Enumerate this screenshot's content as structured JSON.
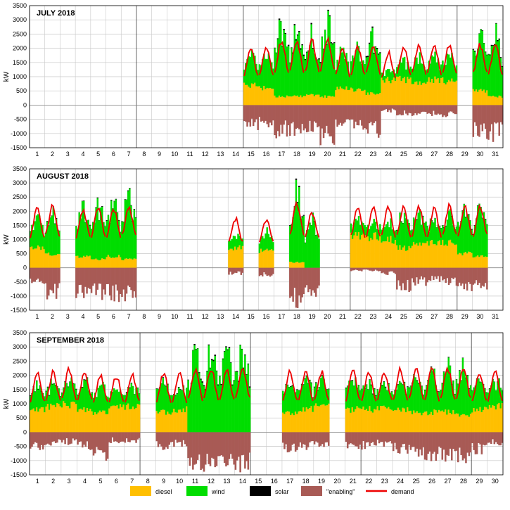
{
  "colors": {
    "diesel": "#ffbf00",
    "wind": "#00dd00",
    "solar": "#000000",
    "enabling": "#a85a55",
    "demand": "#ee0000",
    "grid_minor": "#c8c8c8",
    "grid_major": "#000000"
  },
  "legend": [
    {
      "key": "diesel",
      "label": "diesel",
      "kind": "box"
    },
    {
      "key": "wind",
      "label": "wind",
      "kind": "box"
    },
    {
      "key": "solar",
      "label": "solar",
      "kind": "box"
    },
    {
      "key": "enabling",
      "label": "\"enabling\"",
      "kind": "box"
    },
    {
      "key": "demand",
      "label": "demand",
      "kind": "line"
    }
  ],
  "chart_data": [
    {
      "type": "area",
      "title": "JULY 2018",
      "xlabel": "",
      "ylabel": "kW",
      "ylim": [
        -1500,
        3500
      ],
      "yticks": [
        -1500,
        -1000,
        -500,
        0,
        500,
        1000,
        1500,
        2000,
        2500,
        3000,
        3500
      ],
      "days": 31,
      "x_tick_labels": [
        "1",
        "2",
        "3",
        "4",
        "5",
        "6",
        "7",
        "8",
        "9",
        "10",
        "11",
        "12",
        "13",
        "14",
        "15",
        "16",
        "17",
        "18",
        "19",
        "20",
        "21",
        "22",
        "23",
        "24",
        "25",
        "26",
        "27",
        "28",
        "29",
        "30",
        "31"
      ],
      "legend": "bottom",
      "grid": true,
      "series_names": [
        "diesel",
        "wind",
        "solar",
        "\"enabling\"",
        "demand"
      ],
      "daily": [
        {
          "day": 14.5,
          "diesel": 700,
          "wind": 800,
          "solar": 0,
          "enabling": -700,
          "demand": 1500
        },
        {
          "day": 15.5,
          "diesel": 600,
          "wind": 900,
          "solar": 0,
          "enabling": -650,
          "demand": 1550
        },
        {
          "day": 16.5,
          "diesel": 300,
          "wind": 1900,
          "solar": 20,
          "enabling": -900,
          "demand": 1700
        },
        {
          "day": 17.5,
          "diesel": 300,
          "wind": 1800,
          "solar": 20,
          "enabling": -950,
          "demand": 1700
        },
        {
          "day": 18.5,
          "diesel": 350,
          "wind": 1700,
          "solar": 20,
          "enabling": -850,
          "demand": 1700
        },
        {
          "day": 19.5,
          "diesel": 300,
          "wind": 2000,
          "solar": 20,
          "enabling": -1100,
          "demand": 1750
        },
        {
          "day": 20.5,
          "diesel": 600,
          "wind": 1000,
          "solar": 0,
          "enabling": -600,
          "demand": 1500
        },
        {
          "day": 21.5,
          "diesel": 550,
          "wind": 1100,
          "solar": 0,
          "enabling": -700,
          "demand": 1550
        },
        {
          "day": 22.5,
          "diesel": 400,
          "wind": 1500,
          "solar": 20,
          "enabling": -900,
          "demand": 1600
        },
        {
          "day": 23.5,
          "diesel": 900,
          "wind": 300,
          "solar": 0,
          "enabling": -200,
          "demand": 1400
        },
        {
          "day": 24.5,
          "diesel": 900,
          "wind": 500,
          "solar": 0,
          "enabling": -300,
          "demand": 1550
        },
        {
          "day": 25.5,
          "diesel": 800,
          "wind": 700,
          "solar": 0,
          "enabling": -350,
          "demand": 1600
        },
        {
          "day": 26.5,
          "diesel": 900,
          "wind": 600,
          "solar": 0,
          "enabling": -300,
          "demand": 1600
        },
        {
          "day": 27.5,
          "diesel": 850,
          "wind": 700,
          "solar": 0,
          "enabling": -350,
          "demand": 1600
        },
        {
          "day": 28.5,
          "diesel": 0,
          "wind": 0,
          "solar": 0,
          "enabling": 0,
          "demand": null
        },
        {
          "day": 29.5,
          "diesel": 500,
          "wind": 1500,
          "solar": 20,
          "enabling": -950,
          "demand": 1600
        },
        {
          "day": 30.5,
          "diesel": 300,
          "wind": 1800,
          "solar": 20,
          "enabling": -1000,
          "demand": 1600
        }
      ]
    },
    {
      "type": "area",
      "title": "AUGUST 2018",
      "xlabel": "",
      "ylabel": "kW",
      "ylim": [
        -1500,
        3500
      ],
      "yticks": [
        -1500,
        -1000,
        -500,
        0,
        500,
        1000,
        1500,
        2000,
        2500,
        3000,
        3500
      ],
      "days": 31,
      "x_tick_labels": [
        "1",
        "2",
        "3",
        "4",
        "5",
        "6",
        "7",
        "8",
        "9",
        "10",
        "11",
        "12",
        "13",
        "14",
        "15",
        "16",
        "17",
        "18",
        "19",
        "20",
        "21",
        "22",
        "23",
        "24",
        "25",
        "26",
        "27",
        "28",
        "29",
        "30",
        "31"
      ],
      "legend": "bottom",
      "grid": true,
      "series_names": [
        "diesel",
        "wind",
        "solar",
        "\"enabling\"",
        "demand"
      ],
      "daily": [
        {
          "day": 0.5,
          "diesel": 700,
          "wind": 800,
          "solar": 0,
          "enabling": -500,
          "demand": 1550
        },
        {
          "day": 1.5,
          "diesel": 500,
          "wind": 1200,
          "solar": 10,
          "enabling": -900,
          "demand": 1650
        },
        {
          "day": 3.5,
          "diesel": 400,
          "wind": 1300,
          "solar": 10,
          "enabling": -850,
          "demand": 1550
        },
        {
          "day": 4.5,
          "diesel": 300,
          "wind": 1500,
          "solar": 10,
          "enabling": -900,
          "demand": 1600
        },
        {
          "day": 5.5,
          "diesel": 400,
          "wind": 1500,
          "solar": 10,
          "enabling": -950,
          "demand": 1600
        },
        {
          "day": 6.5,
          "diesel": 300,
          "wind": 1700,
          "solar": 10,
          "enabling": -1000,
          "demand": 1650
        },
        {
          "day": 13.5,
          "diesel": 700,
          "wind": 400,
          "solar": 0,
          "enabling": -200,
          "demand": 1300
        },
        {
          "day": 15.5,
          "diesel": 600,
          "wind": 500,
          "solar": 0,
          "enabling": -250,
          "demand": 1300
        },
        {
          "day": 17.5,
          "diesel": 200,
          "wind": 2000,
          "solar": 20,
          "enabling": -1100,
          "demand": 1700
        },
        {
          "day": 18.5,
          "diesel": 0,
          "wind": 1500,
          "solar": 10,
          "enabling": -800,
          "demand": 1500
        },
        {
          "day": 21.5,
          "diesel": 1100,
          "wind": 400,
          "solar": 0,
          "enabling": -100,
          "demand": 1600
        },
        {
          "day": 22.5,
          "diesel": 1100,
          "wind": 400,
          "solar": 0,
          "enabling": -100,
          "demand": 1600
        },
        {
          "day": 23.5,
          "diesel": 1000,
          "wind": 500,
          "solar": 0,
          "enabling": -200,
          "demand": 1600
        },
        {
          "day": 24.5,
          "diesel": 700,
          "wind": 900,
          "solar": 10,
          "enabling": -700,
          "demand": 1600
        },
        {
          "day": 25.5,
          "diesel": 800,
          "wind": 800,
          "solar": 10,
          "enabling": -500,
          "demand": 1600
        },
        {
          "day": 26.5,
          "diesel": 900,
          "wind": 700,
          "solar": 10,
          "enabling": -400,
          "demand": 1600
        },
        {
          "day": 27.5,
          "diesel": 900,
          "wind": 700,
          "solar": 10,
          "enabling": -500,
          "demand": 1650
        },
        {
          "day": 28.5,
          "diesel": 500,
          "wind": 1200,
          "solar": 10,
          "enabling": -700,
          "demand": 1650
        },
        {
          "day": 29.5,
          "diesel": 400,
          "wind": 1300,
          "solar": 10,
          "enabling": -700,
          "demand": 1650
        }
      ]
    },
    {
      "type": "area",
      "title": "SEPTEMBER 2018",
      "xlabel": "",
      "ylabel": "kW",
      "ylim": [
        -1500,
        3500
      ],
      "yticks": [
        -1500,
        -1000,
        -500,
        0,
        500,
        1000,
        1500,
        2000,
        2500,
        3000,
        3500
      ],
      "days": 30,
      "x_tick_labels": [
        "1",
        "2",
        "3",
        "4",
        "5",
        "6",
        "7",
        "8",
        "9",
        "10",
        "11",
        "12",
        "13",
        "14",
        "15",
        "16",
        "17",
        "18",
        "19",
        "20",
        "21",
        "22",
        "23",
        "24",
        "25",
        "26",
        "27",
        "28",
        "29",
        "30"
      ],
      "legend": "bottom",
      "grid": true,
      "series_names": [
        "diesel",
        "wind",
        "solar",
        "\"enabling\"",
        "demand"
      ],
      "daily": [
        {
          "day": 0.5,
          "diesel": 800,
          "wind": 700,
          "solar": 10,
          "enabling": -500,
          "demand": 1550
        },
        {
          "day": 1.5,
          "diesel": 900,
          "wind": 600,
          "solar": 10,
          "enabling": -400,
          "demand": 1600
        },
        {
          "day": 2.5,
          "diesel": 950,
          "wind": 650,
          "solar": 10,
          "enabling": -350,
          "demand": 1650
        },
        {
          "day": 3.5,
          "diesel": 800,
          "wind": 800,
          "solar": 10,
          "enabling": -500,
          "demand": 1600
        },
        {
          "day": 4.5,
          "diesel": 700,
          "wind": 800,
          "solar": 0,
          "enabling": -800,
          "demand": 1500
        },
        {
          "day": 5.5,
          "diesel": 900,
          "wind": 500,
          "solar": 0,
          "enabling": -300,
          "demand": 1500
        },
        {
          "day": 6.5,
          "diesel": 900,
          "wind": 600,
          "solar": 10,
          "enabling": -300,
          "demand": 1550
        },
        {
          "day": 8.5,
          "diesel": 700,
          "wind": 900,
          "solar": 10,
          "enabling": -500,
          "demand": 1550
        },
        {
          "day": 9.5,
          "diesel": 800,
          "wind": 700,
          "solar": 10,
          "enabling": -400,
          "demand": 1550
        },
        {
          "day": 10.5,
          "diesel": 0,
          "wind": 2100,
          "solar": 20,
          "enabling": -1100,
          "demand": 1650
        },
        {
          "day": 11.5,
          "diesel": 0,
          "wind": 2200,
          "solar": 20,
          "enabling": -1100,
          "demand": 1700
        },
        {
          "day": 12.5,
          "diesel": 0,
          "wind": 2200,
          "solar": 20,
          "enabling": -1150,
          "demand": 1700
        },
        {
          "day": 13.5,
          "diesel": 0,
          "wind": 2300,
          "solar": 20,
          "enabling": -1100,
          "demand": 1700
        },
        {
          "day": 16.5,
          "diesel": 700,
          "wind": 900,
          "solar": 10,
          "enabling": -600,
          "demand": 1600
        },
        {
          "day": 17.5,
          "diesel": 800,
          "wind": 800,
          "solar": 10,
          "enabling": -500,
          "demand": 1600
        },
        {
          "day": 18.5,
          "diesel": 900,
          "wind": 700,
          "solar": 10,
          "enabling": -400,
          "demand": 1600
        },
        {
          "day": 20.5,
          "diesel": 800,
          "wind": 800,
          "solar": 10,
          "enabling": -500,
          "demand": 1600
        },
        {
          "day": 21.5,
          "diesel": 800,
          "wind": 800,
          "solar": 10,
          "enabling": -500,
          "demand": 1600
        },
        {
          "day": 22.5,
          "diesel": 900,
          "wind": 700,
          "solar": 10,
          "enabling": -400,
          "demand": 1600
        },
        {
          "day": 23.5,
          "diesel": 800,
          "wind": 900,
          "solar": 10,
          "enabling": -600,
          "demand": 1650
        },
        {
          "day": 24.5,
          "diesel": 700,
          "wind": 1000,
          "solar": 10,
          "enabling": -700,
          "demand": 1650
        },
        {
          "day": 25.5,
          "diesel": 700,
          "wind": 1100,
          "solar": 10,
          "enabling": -800,
          "demand": 1650
        },
        {
          "day": 26.5,
          "diesel": 700,
          "wind": 1200,
          "solar": 10,
          "enabling": -900,
          "demand": 1700
        },
        {
          "day": 27.5,
          "diesel": 600,
          "wind": 1300,
          "solar": 10,
          "enabling": -900,
          "demand": 1700
        },
        {
          "day": 28.5,
          "diesel": 800,
          "wind": 800,
          "solar": 10,
          "enabling": -600,
          "demand": 1600
        },
        {
          "day": 29.5,
          "diesel": 900,
          "wind": 700,
          "solar": 10,
          "enabling": -400,
          "demand": 1600
        }
      ]
    }
  ]
}
